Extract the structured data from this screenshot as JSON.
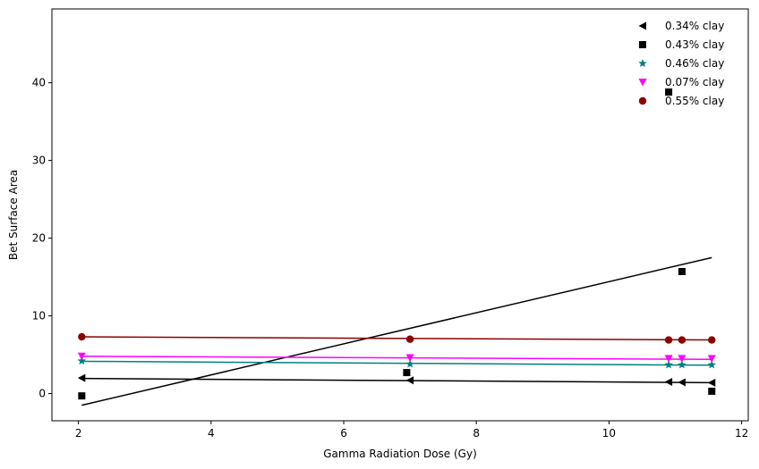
{
  "chart_data": {
    "type": "scatter",
    "title": "",
    "xlabel": "Gamma Radiation Dose (Gy)",
    "ylabel": "Bet Surface Area",
    "xlim": [
      1.6,
      12.1
    ],
    "ylim": [
      -3.5,
      49.5
    ],
    "xticks": [
      2,
      4,
      6,
      8,
      10,
      12
    ],
    "yticks": [
      0,
      10,
      20,
      30,
      40
    ],
    "grid": false,
    "legend_position": "top-right",
    "series": [
      {
        "name": "0.34% clay",
        "marker": "triangle-left",
        "color": "#000000",
        "x": [
          2.05,
          7.0,
          10.9,
          11.1,
          11.55
        ],
        "y": [
          2.0,
          1.7,
          1.5,
          1.45,
          1.4
        ],
        "fit": {
          "x": [
            2.05,
            11.55
          ],
          "y": [
            1.95,
            1.4
          ]
        }
      },
      {
        "name": "0.43% clay",
        "marker": "square",
        "color": "#000000",
        "x": [
          2.05,
          6.95,
          10.9,
          11.1,
          11.55
        ],
        "y": [
          -0.3,
          2.7,
          38.8,
          15.7,
          0.3
        ],
        "fit": {
          "x": [
            2.05,
            11.55
          ],
          "y": [
            -1.5,
            17.5
          ]
        }
      },
      {
        "name": "0.46% clay",
        "marker": "star",
        "color": "#008080",
        "x": [
          2.05,
          7.0,
          10.9,
          11.1,
          11.55
        ],
        "y": [
          4.2,
          3.8,
          3.7,
          3.7,
          3.7
        ],
        "fit": {
          "x": [
            2.05,
            11.55
          ],
          "y": [
            4.15,
            3.65
          ]
        }
      },
      {
        "name": "0.07% clay",
        "marker": "triangle-down",
        "color": "#ff00ff",
        "x": [
          2.05,
          7.0,
          10.9,
          11.1,
          11.55
        ],
        "y": [
          4.8,
          4.6,
          4.5,
          4.5,
          4.5
        ],
        "fit": {
          "x": [
            2.05,
            11.55
          ],
          "y": [
            4.8,
            4.4
          ]
        }
      },
      {
        "name": "0.55% clay",
        "marker": "circle",
        "color": "#8b0000",
        "x": [
          2.05,
          7.0,
          10.9,
          11.1,
          11.55
        ],
        "y": [
          7.3,
          7.0,
          6.9,
          6.9,
          6.9
        ],
        "fit": {
          "x": [
            2.05,
            11.55
          ],
          "y": [
            7.3,
            6.9
          ]
        }
      }
    ]
  }
}
